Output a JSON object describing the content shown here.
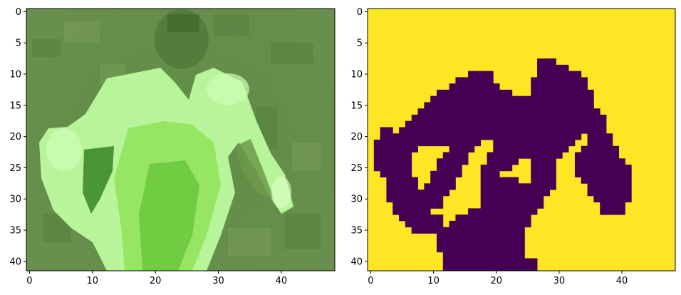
{
  "panels": [
    {
      "name": "photo",
      "x_ticks": [
        0,
        10,
        20,
        30,
        40
      ],
      "y_ticks": [
        0,
        5,
        10,
        15,
        20,
        25,
        30,
        35,
        40
      ],
      "x_range": [
        -0.5,
        48.5
      ],
      "y_range": [
        -0.5,
        41.5
      ]
    },
    {
      "name": "mask",
      "x_ticks": [
        0,
        10,
        20,
        30,
        40
      ],
      "y_ticks": [
        0,
        5,
        10,
        15,
        20,
        25,
        30,
        35,
        40
      ],
      "x_range": [
        -0.5,
        48.5
      ],
      "y_range": [
        -0.5,
        41.5
      ],
      "colors": {
        "background": "#fde725",
        "foreground": "#440154"
      },
      "mask_runs": [
        {
          "row": 8,
          "spans": [
            [
              27,
              29
            ]
          ]
        },
        {
          "row": 9,
          "spans": [
            [
              27,
              31
            ]
          ]
        },
        {
          "row": 10,
          "spans": [
            [
              16,
              19
            ],
            [
              27,
              33
            ]
          ]
        },
        {
          "row": 11,
          "spans": [
            [
              14,
              19
            ],
            [
              26,
              34
            ]
          ]
        },
        {
          "row": 12,
          "spans": [
            [
              13,
              20
            ],
            [
              26,
              34
            ]
          ]
        },
        {
          "row": 13,
          "spans": [
            [
              11,
              22
            ],
            [
              26,
              35
            ]
          ]
        },
        {
          "row": 14,
          "spans": [
            [
              10,
              35
            ]
          ]
        },
        {
          "row": 15,
          "spans": [
            [
              9,
              35
            ]
          ]
        },
        {
          "row": 16,
          "spans": [
            [
              8,
              36
            ]
          ]
        },
        {
          "row": 17,
          "spans": [
            [
              7,
              37
            ]
          ]
        },
        {
          "row": 18,
          "spans": [
            [
              6,
              37
            ]
          ]
        },
        {
          "row": 19,
          "spans": [
            [
              2,
              3
            ],
            [
              5,
              37
            ]
          ]
        },
        {
          "row": 20,
          "spans": [
            [
              2,
              33
            ],
            [
              35,
              38
            ]
          ]
        },
        {
          "row": 21,
          "spans": [
            [
              1,
              17
            ],
            [
              20,
              32
            ],
            [
              35,
              38
            ]
          ]
        },
        {
          "row": 22,
          "spans": [
            [
              1,
              7
            ],
            [
              13,
              16
            ],
            [
              20,
              31
            ],
            [
              34,
              39
            ]
          ]
        },
        {
          "row": 23,
          "spans": [
            [
              1,
              6
            ],
            [
              12,
              15
            ],
            [
              19,
              30
            ],
            [
              33,
              39
            ]
          ]
        },
        {
          "row": 24,
          "spans": [
            [
              1,
              6
            ],
            [
              11,
              15
            ],
            [
              19,
              23
            ],
            [
              26,
              29
            ],
            [
              33,
              40
            ]
          ]
        },
        {
          "row": 25,
          "spans": [
            [
              1,
              6
            ],
            [
              11,
              14
            ],
            [
              18,
              22
            ],
            [
              26,
              29
            ],
            [
              33,
              41
            ]
          ]
        },
        {
          "row": 26,
          "spans": [
            [
              2,
              6
            ],
            [
              10,
              14
            ],
            [
              18,
              20
            ],
            [
              26,
              29
            ],
            [
              33,
              41
            ]
          ]
        },
        {
          "row": 27,
          "spans": [
            [
              3,
              7
            ],
            [
              10,
              13
            ],
            [
              18,
              23
            ],
            [
              26,
              29
            ],
            [
              34,
              41
            ]
          ]
        },
        {
          "row": 28,
          "spans": [
            [
              3,
              7
            ],
            [
              9,
              13
            ],
            [
              18,
              29
            ],
            [
              35,
              41
            ]
          ]
        },
        {
          "row": 29,
          "spans": [
            [
              3,
              8
            ],
            [
              9,
              12
            ],
            [
              18,
              28
            ],
            [
              35,
              41
            ]
          ]
        },
        {
          "row": 30,
          "spans": [
            [
              3,
              8
            ],
            [
              9,
              11
            ],
            [
              18,
              27
            ],
            [
              36,
              41
            ]
          ]
        },
        {
          "row": 31,
          "spans": [
            [
              4,
              9
            ],
            [
              10,
              11
            ],
            [
              18,
              27
            ],
            [
              37,
              40
            ]
          ]
        },
        {
          "row": 32,
          "spans": [
            [
              4,
              9
            ],
            [
              16,
              26
            ],
            [
              37,
              40
            ]
          ]
        },
        {
          "row": 33,
          "spans": [
            [
              5,
              11
            ],
            [
              14,
              25
            ]
          ]
        },
        {
          "row": 34,
          "spans": [
            [
              6,
              11
            ],
            [
              13,
              25
            ]
          ]
        },
        {
          "row": 35,
          "spans": [
            [
              7,
              24
            ]
          ]
        },
        {
          "row": 36,
          "spans": [
            [
              11,
              24
            ]
          ]
        },
        {
          "row": 37,
          "spans": [
            [
              11,
              24
            ]
          ]
        },
        {
          "row": 38,
          "spans": [
            [
              11,
              24
            ]
          ]
        },
        {
          "row": 39,
          "spans": [
            [
              12,
              24
            ]
          ]
        },
        {
          "row": 40,
          "spans": [
            [
              12,
              26
            ]
          ]
        },
        {
          "row": 41,
          "spans": [
            [
              12,
              26
            ]
          ]
        }
      ]
    }
  ]
}
